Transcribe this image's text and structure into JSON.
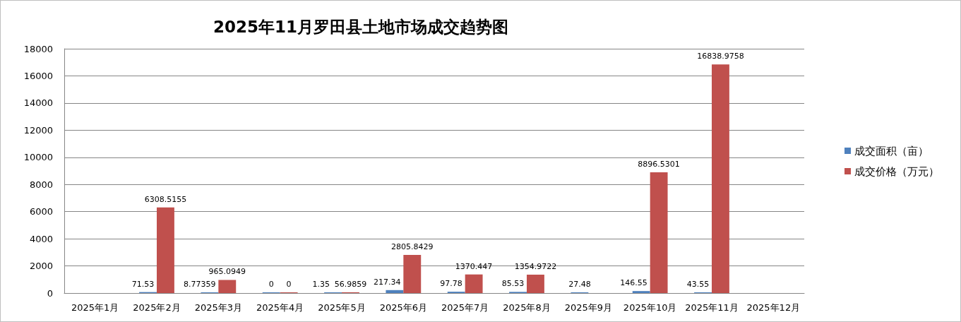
{
  "chart_data": {
    "type": "bar",
    "title": "2025年11月罗田县土地市场成交趋势图",
    "categories": [
      "2025年1月",
      "2025年2月",
      "2025年3月",
      "2025年4月",
      "2025年5月",
      "2025年6月",
      "2025年7月",
      "2025年8月",
      "2025年9月",
      "2025年10月",
      "2025年11月",
      "2025年12月"
    ],
    "series": [
      {
        "name": "成交面积（亩）",
        "color": "#4f81bd",
        "values": [
          null,
          71.53,
          8.77359,
          0,
          1.35,
          217.34,
          97.78,
          85.53,
          27.48,
          146.55,
          43.55,
          null
        ]
      },
      {
        "name": "成交价格（万元）",
        "color": "#c0504d",
        "values": [
          null,
          6308.5155,
          965.0949,
          0,
          56.9859,
          2805.8429,
          1370.447,
          1354.9722,
          null,
          8896.5301,
          16838.9758,
          null
        ]
      }
    ],
    "ylim": [
      0,
      18000
    ],
    "yticks": [
      0,
      2000,
      4000,
      6000,
      8000,
      10000,
      12000,
      14000,
      16000,
      18000
    ],
    "grid": "y",
    "legend": "right",
    "data_labels": true
  }
}
